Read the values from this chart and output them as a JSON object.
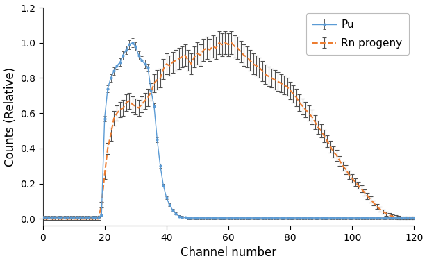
{
  "title": "",
  "xlabel": "Channel number",
  "ylabel": "Counts (Relative)",
  "xlim": [
    0,
    120
  ],
  "ylim": [
    -0.04,
    1.2
  ],
  "yticks": [
    0.0,
    0.2,
    0.4,
    0.6,
    0.8,
    1.0,
    1.2
  ],
  "xticks": [
    0,
    20,
    40,
    60,
    80,
    100,
    120
  ],
  "pu_color": "#5B9BD5",
  "rn_color": "#ED7D31",
  "legend_labels": [
    "Pu",
    "Rn progeny"
  ],
  "background_color": "#ffffff"
}
